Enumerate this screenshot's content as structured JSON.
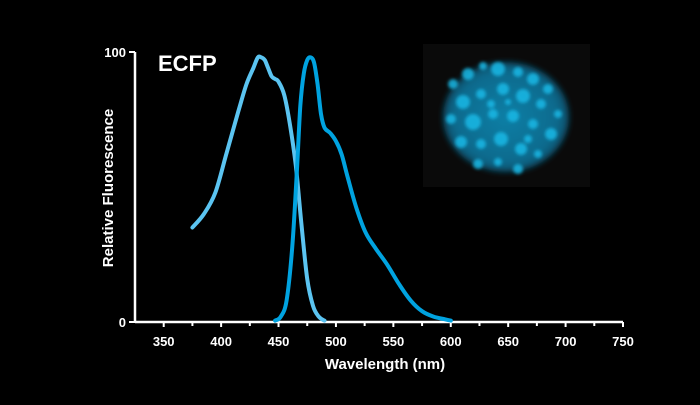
{
  "chart_data": {
    "type": "line",
    "title": "ECFP",
    "xlabel": "Wavelength (nm)",
    "ylabel": "Relative Fluorescence",
    "xlim": [
      325,
      750
    ],
    "ylim": [
      0,
      100
    ],
    "x_ticks": [
      350,
      400,
      450,
      500,
      550,
      600,
      650,
      700,
      750
    ],
    "y_tick_labels": [
      "0",
      "100"
    ],
    "grid": false,
    "legend": "none",
    "colors": {
      "background": "#000000",
      "axes": "#ffffff",
      "text": "#ffffff",
      "excitation": "#5bc4f1",
      "emission": "#00a3e0",
      "cell": "#19b8e6"
    },
    "series": [
      {
        "x": [
          375,
          385,
          395,
          405,
          415,
          422,
          428,
          432,
          435,
          438,
          441,
          444,
          447,
          450,
          455,
          460,
          465,
          470,
          475,
          480,
          485,
          490
        ],
        "values": [
          35,
          40,
          48,
          63,
          78,
          88,
          94,
          98,
          98,
          97,
          94,
          91,
          90,
          89,
          84,
          73,
          58,
          36,
          16,
          6,
          2,
          0.5
        ]
      },
      {
        "x": [
          447,
          452,
          457,
          462,
          466,
          469,
          472,
          475,
          478,
          481,
          484,
          487,
          490,
          495,
          500,
          505,
          510,
          518,
          526,
          535,
          545,
          555,
          565,
          575,
          585,
          595,
          600
        ],
        "values": [
          0.5,
          2,
          8,
          28,
          56,
          80,
          92,
          97,
          98,
          96,
          88,
          77,
          72,
          70,
          67,
          62,
          54,
          42,
          33,
          27,
          21,
          14,
          8,
          4,
          2,
          1,
          0.5
        ]
      }
    ]
  },
  "inset": {
    "subject": "cell-nucleus-fluorescence-image",
    "tint": "#19b8e6"
  }
}
